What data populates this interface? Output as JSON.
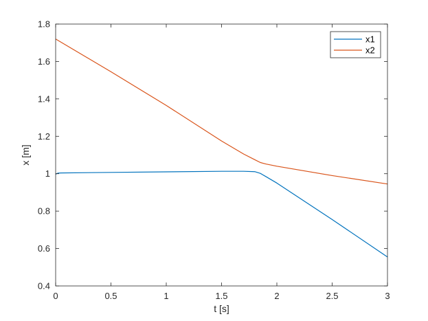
{
  "chart_data": {
    "type": "line",
    "title": "",
    "xlabel": "t [s]",
    "ylabel": "x [m]",
    "xlim": [
      0,
      3
    ],
    "ylim": [
      0.4,
      1.8
    ],
    "xticks": [
      0,
      0.5,
      1,
      1.5,
      2,
      2.5,
      3
    ],
    "xtick_labels": [
      "0",
      "0.5",
      "1",
      "1.5",
      "2",
      "2.5",
      "3"
    ],
    "yticks": [
      0.4,
      0.6,
      0.8,
      1.0,
      1.2,
      1.4,
      1.6,
      1.8
    ],
    "ytick_labels": [
      "0.4",
      "0.6",
      "0.8",
      "1",
      "1.2",
      "1.4",
      "1.6",
      "1.8"
    ],
    "grid": false,
    "legend_position": "top-right",
    "series": [
      {
        "name": "x1",
        "color": "#0072BD",
        "x": [
          0,
          0.02,
          0.05,
          0.5,
          1.0,
          1.5,
          1.7,
          1.8,
          1.85,
          1.9,
          2.0,
          2.5,
          3.0
        ],
        "y": [
          0.998,
          1.003,
          1.004,
          1.007,
          1.01,
          1.013,
          1.013,
          1.011,
          1.002,
          0.985,
          0.95,
          0.755,
          0.555
        ]
      },
      {
        "name": "x2",
        "color": "#D95319",
        "x": [
          0,
          0.5,
          1.0,
          1.5,
          1.7,
          1.8,
          1.85,
          1.9,
          2.0,
          2.5,
          3.0
        ],
        "y": [
          1.72,
          1.545,
          1.365,
          1.175,
          1.105,
          1.075,
          1.06,
          1.052,
          1.04,
          0.99,
          0.945
        ]
      }
    ]
  }
}
